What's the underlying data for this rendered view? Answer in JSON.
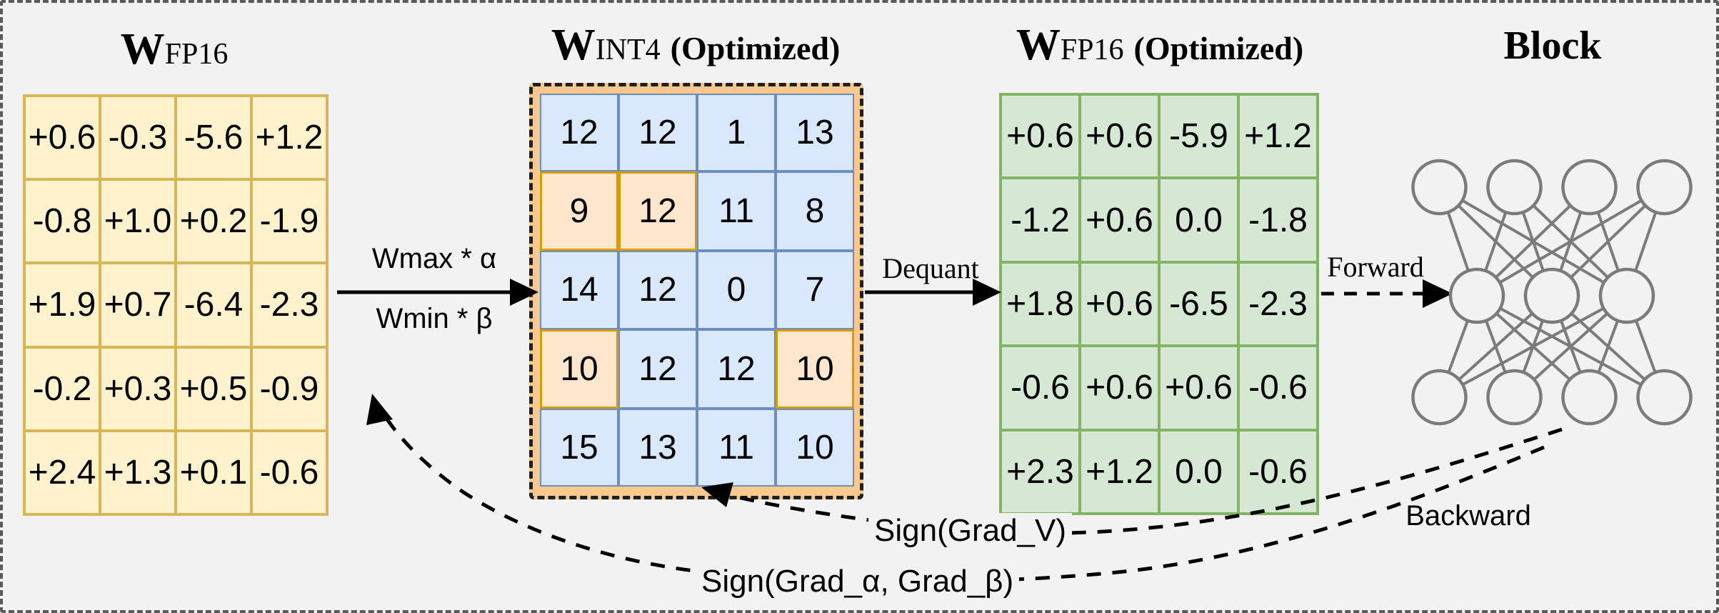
{
  "matrices": {
    "fp16": {
      "title": {
        "main": "W",
        "sub": "FP16",
        "suffix": ""
      },
      "rows": [
        [
          "+0.6",
          "-0.3",
          "-5.6",
          "+1.2"
        ],
        [
          "-0.8",
          "+1.0",
          "+0.2",
          "-1.9"
        ],
        [
          "+1.9",
          "+0.7",
          "-6.4",
          "-2.3"
        ],
        [
          "-0.2",
          "+0.3",
          "+0.5",
          "-0.9"
        ],
        [
          "+2.4",
          "+1.3",
          "+0.1",
          "-0.6"
        ]
      ],
      "fill": "#FFF2CC",
      "stroke": "#D6B656"
    },
    "int4": {
      "title": {
        "main": "W",
        "sub": "INT4",
        "suffix": "(Optimized)"
      },
      "rows": [
        [
          "12",
          "12",
          "1",
          "13"
        ],
        [
          "9",
          "12",
          "11",
          "8"
        ],
        [
          "14",
          "12",
          "0",
          "7"
        ],
        [
          "10",
          "12",
          "12",
          "10"
        ],
        [
          "15",
          "13",
          "11",
          "10"
        ]
      ],
      "highlights": [
        [
          1,
          0
        ],
        [
          1,
          1
        ],
        [
          3,
          0
        ],
        [
          3,
          3
        ]
      ],
      "fill": "#DAE8FC",
      "stroke": "#6C8EBF",
      "highlight_fill": "#FFE6CC",
      "highlight_stroke": "#D79B00",
      "band_fill": "#F9C88F"
    },
    "fp16_opt": {
      "title": {
        "main": "W",
        "sub": "FP16",
        "suffix": "(Optimized)"
      },
      "rows": [
        [
          "+0.6",
          "+0.6",
          "-5.9",
          "+1.2"
        ],
        [
          "-1.2",
          "+0.6",
          "0.0",
          "-1.8"
        ],
        [
          "+1.8",
          "+0.6",
          "-6.5",
          "-2.3"
        ],
        [
          "-0.6",
          "+0.6",
          "+0.6",
          "-0.6"
        ],
        [
          "+2.3",
          "+1.2",
          "0.0",
          "-0.6"
        ]
      ],
      "fill": "#D5E8D4",
      "stroke": "#82B366"
    }
  },
  "block": {
    "title": "Block",
    "layers": [
      4,
      3,
      4
    ],
    "node_color": "#7B7B7B"
  },
  "labels": {
    "quant_top": "Wmax * α",
    "quant_bottom": "Wmin * β",
    "dequant": "Dequant",
    "forward": "Forward",
    "backward": "Backward",
    "sign_v": "Sign(Grad_V)",
    "sign_ab": "Sign(Grad_α, Grad_β)"
  }
}
